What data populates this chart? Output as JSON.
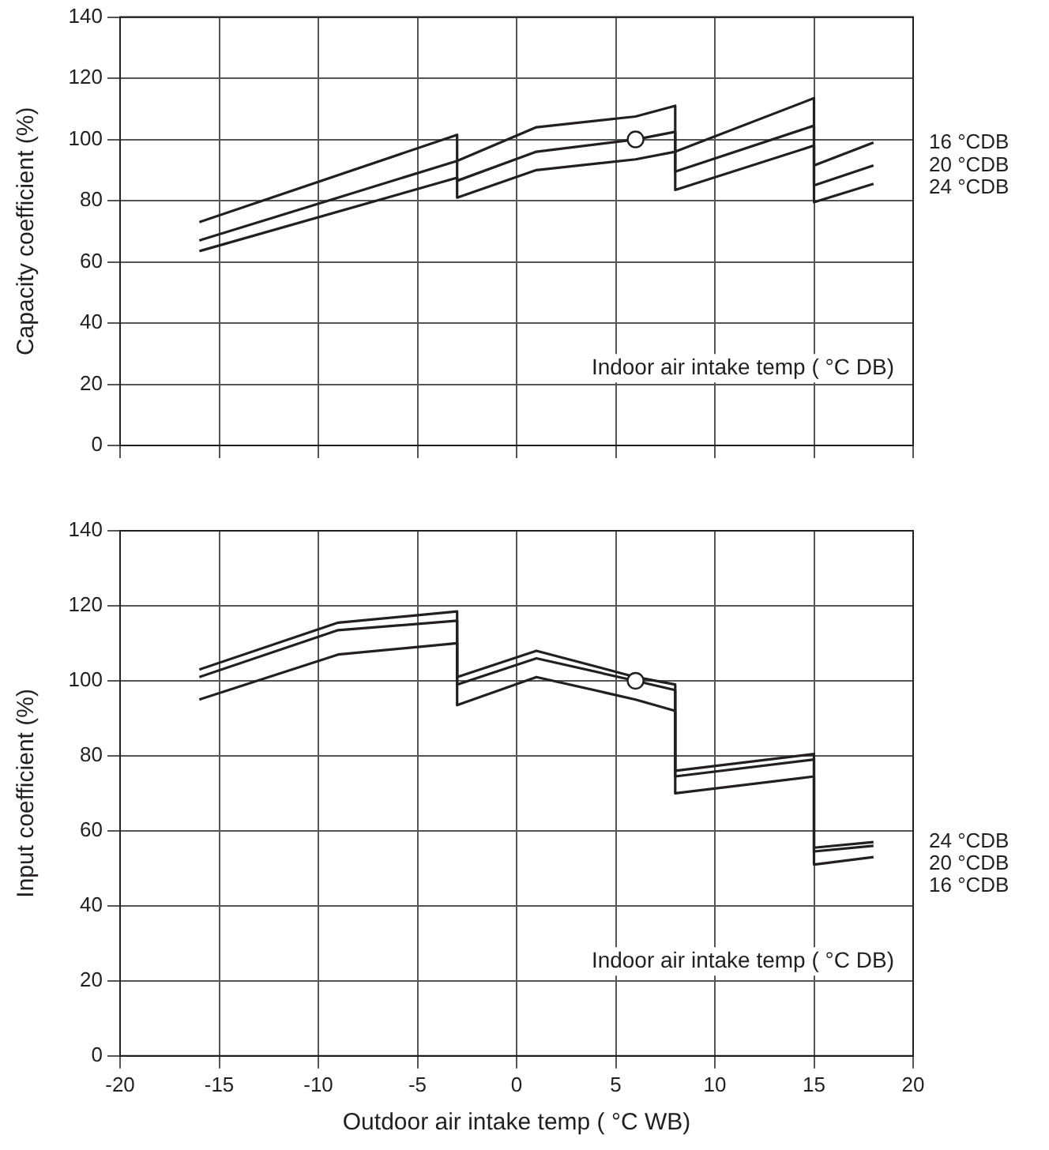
{
  "chart_data": [
    {
      "type": "line",
      "ylabel": "Capacity coefficient (%)",
      "xlim": [
        -20,
        20
      ],
      "xticks": [
        -20,
        -15,
        -10,
        -5,
        0,
        5,
        10,
        15,
        20
      ],
      "ylim": [
        0,
        140
      ],
      "yticks": [
        0,
        20,
        40,
        60,
        80,
        100,
        120,
        140
      ],
      "tick_labels": "y",
      "grid": true,
      "legend": false,
      "marker": "none",
      "line_style": "solid",
      "annotations": [
        "Indoor air intake temp ( °C DB)"
      ],
      "series": [
        {
          "name": "16 °CDB",
          "color": "#231f20",
          "x": [
            -16,
            -3,
            -3,
            1,
            6,
            8,
            8,
            15,
            15,
            18
          ],
          "values": [
            73,
            101.5,
            93,
            104,
            107.5,
            111,
            96,
            113.5,
            91.5,
            99
          ]
        },
        {
          "name": "20 °CDB",
          "color": "#231f20",
          "x": [
            -16,
            -3,
            -3,
            1,
            6,
            8,
            8,
            15,
            15,
            18
          ],
          "values": [
            67,
            93,
            86.5,
            96,
            100,
            102.5,
            89.5,
            104.5,
            85,
            91.5
          ]
        },
        {
          "name": "24 °CDB",
          "color": "#231f20",
          "x": [
            -16,
            -3,
            -3,
            1,
            6,
            8,
            8,
            15,
            15,
            18
          ],
          "values": [
            63.5,
            87.5,
            81,
            90,
            93.5,
            96,
            83.5,
            98,
            79.5,
            85.5
          ]
        },
        {
          "type": "scatter",
          "marker": "circle",
          "color": "#231f20",
          "x": [
            6
          ],
          "values": [
            100
          ]
        }
      ]
    },
    {
      "type": "line",
      "xlabel": "Outdoor air intake temp ( °C WB)",
      "ylabel": "Input coefficient (%)",
      "xlim": [
        -20,
        20
      ],
      "xticks": [
        -20,
        -15,
        -10,
        -5,
        0,
        5,
        10,
        15,
        20
      ],
      "ylim": [
        0,
        140
      ],
      "yticks": [
        0,
        20,
        40,
        60,
        80,
        100,
        120,
        140
      ],
      "grid": true,
      "legend": false,
      "marker": "none",
      "line_style": "solid",
      "annotations": [
        "Indoor air intake temp ( °C DB)"
      ],
      "series": [
        {
          "name": "24 °CDB",
          "color": "#231f20",
          "x": [
            -16,
            -9,
            -3,
            -3,
            1,
            6,
            8,
            8,
            15,
            15,
            18
          ],
          "values": [
            103,
            115.5,
            118.5,
            101,
            108,
            101,
            99,
            76,
            80.5,
            55.5,
            57
          ]
        },
        {
          "name": "20 °CDB",
          "color": "#231f20",
          "x": [
            -16,
            -9,
            -3,
            -3,
            1,
            6,
            8,
            8,
            15,
            15,
            18
          ],
          "values": [
            101,
            113.5,
            116,
            99,
            106,
            100,
            97.5,
            74.5,
            79,
            54.5,
            56
          ]
        },
        {
          "name": "16 °CDB",
          "color": "#231f20",
          "x": [
            -16,
            -9,
            -3,
            -3,
            1,
            6,
            8,
            8,
            15,
            15,
            18
          ],
          "values": [
            95,
            107,
            110,
            93.5,
            101,
            95,
            92,
            70,
            74.5,
            51,
            53
          ]
        },
        {
          "type": "scatter",
          "marker": "circle",
          "color": "#231f20",
          "x": [
            6
          ],
          "values": [
            100
          ]
        }
      ]
    }
  ]
}
